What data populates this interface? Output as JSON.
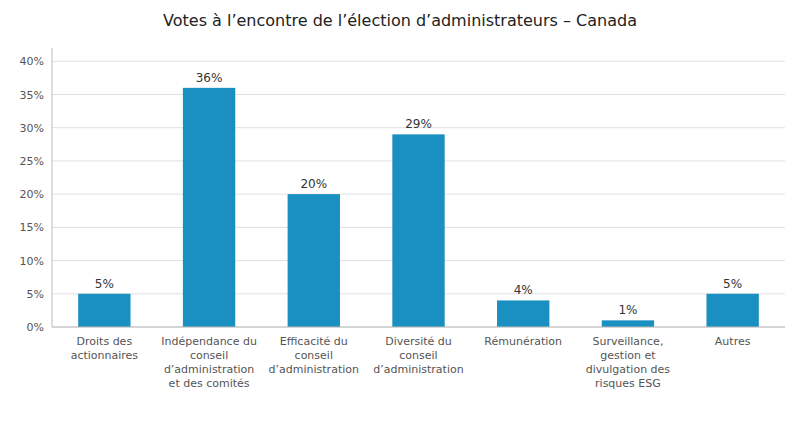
{
  "chart_data": {
    "type": "bar",
    "title": "Votes à l’encontre de l’élection d’administrateurs – Canada",
    "categories": [
      "Droits des\nactionnaires",
      "Indépendance du\nconseil\nd’administration\net des comités",
      "Efficacité du\nconseil\nd’administration",
      "Diversité du\nconseil\nd’administration",
      "Rémunération",
      "Surveillance,\ngestion et\ndivulgation des\nrisques ESG",
      "Autres"
    ],
    "values": [
      5,
      36,
      20,
      29,
      4,
      1,
      5
    ],
    "value_labels": [
      "5%",
      "36%",
      "20%",
      "29%",
      "4%",
      "1%",
      "5%"
    ],
    "data_labels": true,
    "color": "#1a8fc1",
    "ylim": [
      0,
      42
    ],
    "yticks": [
      {
        "value": 0,
        "label": "0%"
      },
      {
        "value": 5,
        "label": "5%"
      },
      {
        "value": 10,
        "label": "10%"
      },
      {
        "value": 15,
        "label": "15%"
      },
      {
        "value": 20,
        "label": "20%"
      },
      {
        "value": 25,
        "label": "25%"
      },
      {
        "value": 30,
        "label": "30%"
      },
      {
        "value": 35,
        "label": "35%"
      },
      {
        "value": 40,
        "label": "40%"
      }
    ],
    "grid": true
  }
}
